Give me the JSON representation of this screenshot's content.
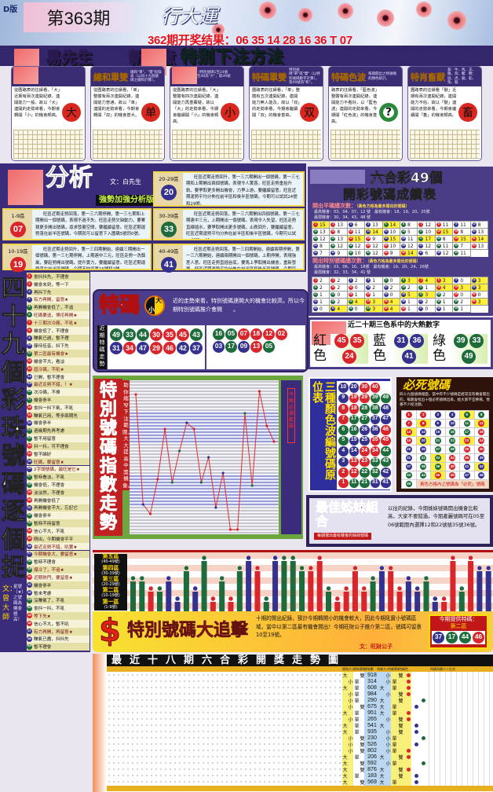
{
  "colors": {
    "red": "#d8262c",
    "blue": "#35318f",
    "green": "#1e6b3c",
    "yellow": "#ffef3a",
    "purple": "#3a2c7a"
  },
  "header": {
    "edition": "D版",
    "period": "第363期",
    "slogan": "行大運",
    "result": "362期开奖结果：06 35 14 28 16 36 T 07"
  },
  "titlebar": {
    "part1": "易先生",
    "part2": "新玩意",
    "part3": "特别下注方法"
  },
  "tips": [
    {
      "title": "",
      "note": "",
      "text": "從圖路表的往績看，「大」近期有兩次連開紀錄，連開能力一般，故以「大」連開的走勢來看，今期會轉開「小」的機會頗高。",
      "symbol": "大"
    },
    {
      "title": "總和單雙",
      "note": "總和\"單\"、\"雙\"紀錄表（以四十九個號碼之總和計算）。",
      "text": "從圖路表的往績看，「单」整體有兩次連開紀錄，連開能力普通，故以「单」連開的走勢來看，今期會轉開「双」的機會甚大。",
      "symbol": "单"
    },
    {
      "title": "",
      "note": "以前開紀錄表（特別號碼1至24號為\"小\"，而25至48為\"大\"，第49號為\"和\"）。",
      "text": "從圖路表的往績看，「大」整體有四次連開紀錄，連開能力再重覆疑，故以「大」的走勢來看，今期會繼續開「小」的機會頗高。",
      "symbol": "小"
    },
    {
      "title": "特碼單雙",
      "note": "特別號碼\"單\"或\"雙\"（以特別號碼數字計算），第49號為\"和\"。",
      "text": "圖路表的往績看，「単」整體有五次連開紀錄，連開能力無人能及，故以「双」的走勢來看，今期會繼續開「双」的機會甚高。",
      "symbol": "双"
    },
    {
      "title": "特碼色波",
      "note": "每期開出之特號碼的顏色統計。",
      "text": "路表的往績看，「藍色波」整體有兩次連開紀錄，連開能力不看好，以「藍色波」連開的走勢來看，今期開「紅色波」的機會甚高。",
      "symbol": "?"
    },
    {
      "title": "特肖畜獸",
      "note": "畜：牛、馬、羊、雞、狗、豬　獸：鼠、虎、龍、蛇、兔、猴",
      "text": "圖路表的往績看「獸」近期有兩次連開紀錄，連開能力不俗，故以「獸」連開的走勢來看，今期會繼續開「畜」的機會頗高。",
      "symbol": "畜"
    }
  ],
  "analysis": {
    "title": "分析",
    "author": "文：白先生",
    "subtitle": "強勢加強分析版",
    "zones": [
      {
        "label": "1-9區",
        "number": "07",
        "text": "旺區近期走勢回落，第一三六期停開，第一三七期和上期開出一個號碼，表現不過不失。旺區走勢欠缺動力，要累積更多開出號碼，尋求發展空間，要繼續留意。旺區近期運勢落在前半區號碼，今期就可以留意下入圍碼5號同0號。"
      },
      {
        "label": "10-19區",
        "number": "19",
        "text": "旺區近期走勢回升，第一三四期開始，連續三期開出一個號碼，第一三七期停開，上期連中三元，旺區走勢一洗頹風，要趁勢開出號碼，提升實力，要繼續留意。旺區近期運勢落在前半區號碼，今期不妨留意16號和2號。"
      },
      {
        "label": "20-29區",
        "number": "20",
        "text": "旺區近期走勢回升，第一三六期開出一個號碼，第一三七期和上期開出兩個號碼，表現令人驚喜。旺區走勢重拾升軌，要爭取更多開出機會，力爭上游，要繼續留意。旺區近期運勢平均分佈在前半區和後半區號碼，今期可以試試24號和29號。"
      },
      {
        "label": "30-39區",
        "number": "33",
        "text": "旺區近期走勢回落，第一三六期開出四個號碼，第一三七期連中三元，上期開出一個號碼，表現令人失望。旺區走勢直線插水，要爭取開出更多號碼，止跌回升，要繼續留意。旺區近期運勢平均分佈在前半區和後半區號碼，今期可以試37號同36號。"
      },
      {
        "label": "40-49區",
        "number": "41",
        "text": "旺區近期走勢回落，第一三四期開始，連續兩期停開，第一三六期開始，連續兩期開出一個號碼，上期停開，表現強差人意。旺區走勢直插谷底，要馬上爭取開出機會，重新發展。旺區近期運勢平均分佈在前半區和後半區號碼，今期可以留意48號和41號。"
      }
    ]
  },
  "score": {
    "title1": "六合彩49個",
    "title2": "開彩號碼成績表",
    "normal": {
      "heading": "開出平碼總次數：",
      "hint": "（黃色方格為最多開出的號碼）",
      "line1": "最高機會：03、04、07、12 號　最有機會：18、19、20、25號",
      "line2": "最弱機會：30、34、43、48 號",
      "counts": [
        15,
        13,
        6,
        13,
        14,
        8,
        12,
        11,
        11,
        8,
        13,
        8,
        11,
        14,
        10,
        5,
        10,
        15,
        8,
        13,
        12,
        13,
        15,
        9,
        15,
        11,
        17,
        8,
        15,
        14,
        8,
        12,
        12,
        12,
        10,
        12,
        12,
        11,
        7,
        13,
        7,
        9,
        10,
        12,
        9,
        14,
        6,
        12,
        11
      ],
      "highlight": [
        1,
        5,
        14,
        18,
        23,
        25,
        27,
        29,
        30,
        46
      ]
    },
    "special": {
      "heading": "開出特別號碼總次數：",
      "hint": "（黃色方格為最多開出的號碼）",
      "line1": "最高機會：03、06、16、18號　最有機會：19、20、24、26號",
      "line2": "最弱機會：32、33、34、41 號",
      "counts": [
        2,
        2,
        2,
        1,
        0,
        3,
        4,
        3,
        0,
        3,
        2,
        2,
        0,
        2,
        2,
        2,
        1,
        4,
        3,
        3,
        1,
        0,
        1,
        1,
        0,
        5,
        3,
        2,
        0,
        0,
        1,
        2,
        4,
        3,
        4,
        1,
        2,
        1,
        2,
        3,
        0,
        4,
        0,
        3,
        4,
        1,
        0,
        1,
        1
      ],
      "highlight": [
        6,
        7,
        8,
        10,
        18,
        19,
        20,
        26,
        27,
        33,
        34,
        35,
        40,
        42,
        44,
        45
      ]
    }
  },
  "hot_colors": {
    "title": "近二十期三色系中的大熱數字",
    "groups": [
      {
        "label": "紅色",
        "numbers": [
          "45",
          "35",
          "24"
        ],
        "color": "red"
      },
      {
        "label": "藍色",
        "numbers": [
          "31",
          "36",
          "41"
        ],
        "color": "blue"
      },
      {
        "label": "綠色",
        "numbers": [
          "39",
          "33",
          "49"
        ],
        "color": "green"
      }
    ]
  },
  "leftcol": {
    "title": "四十九個彩珠號碼逐個捉",
    "author": "文：曾大師",
    "note": "星號（★）之號碼為機會極高！",
    "items": [
      "會抖抖先，不理會",
      "機會未到，等一下",
      "再抖下先",
      "有力再開，留意★",
      "再開機會低了，不追",
      "旺碼要追，博佢再開★",
      "十三期次冷碼，不吼★",
      "機會低了，不理會",
      "賺氣已過，暫不理",
      "靜待佳音，抖下先",
      "第二區最有機會★",
      "機會不大，看淡",
      "屆冷碼，不吼★",
      "已開，暫不理會",
      "最近走勢不錯，！★",
      "次冷碼，不捧",
      "機會參半",
      "會抖一抖下氣，不吼",
      "賺氣已用，等多兩期先",
      "機會參半",
      "過幾期先再考慮",
      "暫不用留意",
      "抖一抖，可不理會",
      "暫不睇好",
      "旺碼，要留意★",
      "2字頭號碼，最旺是它★",
      "暫時看淡，不吼",
      "機會低，不理會",
      "淡淡然，不理會",
      "再開機會低了",
      "再開機會不大，忘記它",
      "機會參半",
      "暫時不用留意",
      "信心不大，不吼",
      "剛出，今期機會平平",
      "最近走勢不錯，吼實★",
      "今期機會大，要留意★",
      "暫時不理會",
      "爆冷了，不追★",
      "近期熱門，要留意★",
      "機會參半",
      "暫未考慮",
      "沒賺氣了，不吼",
      "會抖一抖，不吼",
      "等下先★",
      "信心不大，暫不吼",
      "有力再開，再留意★",
      "賺氣已盡，抖抖先",
      "暫不理會"
    ]
  },
  "tema": {
    "title": "特碼",
    "big": "大",
    "small": "小",
    "text": "近的走勢來看，特別號碼連開大的機會比較高，所以今期特別號碼推介會開　　。",
    "side": "近期特碼走勢",
    "big_numbers": [
      "49",
      "33",
      "44",
      "30",
      "35",
      "45",
      "43",
      "31",
      "34",
      "47",
      "29",
      "46",
      "42",
      "37"
    ],
    "small_numbers": [
      "16",
      "05",
      "07",
      "18",
      "12",
      "02",
      "03",
      "17",
      "09",
      "13",
      "05"
    ]
  },
  "chart_data": {
    "type": "line",
    "title": "特別號碼指數走勢",
    "subtitle": "助你縮窄下注範圍，大大提高中獎機會。",
    "side_label": "今期必選範圍",
    "ylim": [
      1,
      49
    ],
    "values": [
      45,
      10,
      7,
      18,
      34,
      17,
      27,
      36,
      34,
      17,
      25,
      9,
      20,
      2,
      2,
      39,
      16,
      46,
      35,
      30
    ]
  },
  "color_wave": {
    "title": "三種顏色波編號碼原位表",
    "rows": [
      [
        "10",
        "20",
        "30",
        "40"
      ],
      [
        "9",
        "19",
        "29",
        "39",
        "49"
      ],
      [
        "8",
        "18",
        "28",
        "38",
        "48"
      ],
      [
        "7",
        "17",
        "27",
        "37",
        "47"
      ],
      [
        "6",
        "16",
        "26",
        "36",
        "46"
      ],
      [
        "5",
        "15",
        "25",
        "35",
        "45"
      ],
      [
        "4",
        "14",
        "24",
        "34",
        "44"
      ],
      [
        "3",
        "13",
        "23",
        "33",
        "43"
      ],
      [
        "2",
        "12",
        "22",
        "32",
        "42"
      ],
      [
        "1",
        "11",
        "21",
        "31",
        "41"
      ]
    ]
  },
  "bisi": {
    "title": "必死號碼",
    "text": "四十九個號碼裡面，當中有不少號碼是經常沒有機會開出的，每期會找出十個必死號碼出來，給大家不宜捧場，慳番不少投注額。",
    "footer": "黃色方格內之號碼為「必死」號碼",
    "marked": [
      5,
      8,
      12,
      13,
      20,
      23,
      33,
      39,
      42,
      45
    ]
  },
  "sister": {
    "title": "最佳姊妹組合",
    "caption": "每期選出最有機會的姊妹號碼",
    "text": "以往的紀錄，今期姊妹號碼開出機會比較高，大家不要錯過。今期產麗號碼可在05至06號範圍內選擇12和22號號35號36號。"
  },
  "zone_bars": {
    "legend": [
      {
        "name": "第五區",
        "range": "(40-49號)"
      },
      {
        "name": "第四區",
        "range": "(30-39號)"
      },
      {
        "name": "第三區",
        "range": "(20-29號)"
      },
      {
        "name": "第二區",
        "range": "(10-19號)"
      },
      {
        "name": "第一區",
        "range": "(1-9號)"
      }
    ],
    "bars": [
      [
        3,
        "green"
      ],
      [
        3,
        "green"
      ],
      [
        2,
        "red"
      ],
      [
        2,
        "green"
      ],
      [
        3,
        "blue"
      ],
      [
        1,
        "blue"
      ],
      [
        4,
        "green"
      ],
      [
        2,
        "blue"
      ],
      [
        5,
        "green"
      ],
      [
        1,
        "red"
      ],
      [
        3,
        "green"
      ],
      [
        1,
        "red"
      ],
      [
        4,
        "green"
      ],
      [
        5,
        "blue"
      ],
      [
        4,
        "red"
      ],
      [
        1,
        "green"
      ],
      [
        5,
        "blue"
      ],
      [
        5,
        "green"
      ],
      [
        5,
        "green"
      ],
      [
        4,
        "green"
      ],
      [
        4,
        "red"
      ],
      [
        5,
        "red"
      ],
      [
        2,
        "green"
      ],
      [
        1,
        "red"
      ],
      [
        2,
        "red"
      ],
      [
        4,
        "red"
      ],
      [
        2,
        "red"
      ],
      [
        3,
        "green"
      ],
      [
        4,
        "blue"
      ],
      [
        4,
        "red"
      ],
      [
        2,
        "red"
      ],
      [
        3,
        "blue"
      ],
      [
        2,
        "blue"
      ],
      [
        3,
        "green"
      ],
      [
        1,
        "blue"
      ],
      [
        1,
        "red"
      ],
      [
        5,
        "red"
      ],
      [
        2,
        "green"
      ],
      [
        5,
        "red"
      ],
      [
        4,
        "blue"
      ],
      [
        4,
        "blue"
      ]
    ]
  },
  "chase": {
    "title": "特別號碼大追擊",
    "text": "十期的開出紀錄，預計今期轉開小的機會較大，因此今期吼實小號碼區域，當中以第二區最有機會開出！今期旺財公子推介第二區，號碼可留意10至19號。",
    "author": "文：旺財公子",
    "offer_label": "今期提供特碼：",
    "offer_zone": "第二區",
    "numbers": [
      "37",
      "17",
      "44",
      "46"
    ]
  },
  "trend": {
    "title": "最近十八期六合彩開獎走勢圖",
    "zodiac_header": "特碼所屬十二生肖",
    "col_headers": [
      "總和大小",
      "總和單雙",
      "總和數",
      "特碼大小",
      "特碼單雙",
      "特碼色"
    ],
    "rows": [
      [
        "大",
        "雙",
        "918",
        "小",
        "雙",
        "red"
      ],
      [
        "小",
        "單",
        "314",
        "小",
        "單",
        "red"
      ],
      [
        "大",
        "單",
        "608",
        "大",
        "單",
        "red"
      ],
      [
        "小",
        "單",
        "984",
        "小",
        "雙",
        "red"
      ],
      [
        "小",
        "單",
        "290",
        "大",
        "雙",
        "green"
      ],
      [
        "小",
        "雙",
        "675",
        "大",
        "單",
        "blue"
      ],
      [
        "大",
        "單",
        "951",
        "大",
        "單",
        "red"
      ],
      [
        "小",
        "單",
        "265",
        "小",
        "雙",
        "red"
      ],
      [
        "大",
        "單",
        "541",
        "大",
        "雙",
        "blue"
      ],
      [
        "大",
        "單",
        "935",
        "小",
        "雙",
        "blue"
      ],
      [
        "小",
        "雙",
        "230",
        "小",
        "單",
        "green"
      ],
      [
        "小",
        "雙",
        "526",
        "小",
        "單",
        "blue"
      ],
      [
        "小",
        "雙",
        "802",
        "小",
        "單",
        "red"
      ],
      [
        "大",
        "單",
        "206",
        "大",
        "雙",
        "red"
      ],
      [
        "大",
        "雙",
        "592",
        "小",
        "單",
        "green"
      ],
      [
        "大",
        "雙",
        "876",
        "大",
        "雙",
        "red"
      ],
      [
        "大",
        "單",
        "183",
        "大",
        "雙",
        "blue"
      ],
      [
        "大",
        "雙",
        "569",
        "大",
        "單",
        "blue"
      ]
    ]
  }
}
